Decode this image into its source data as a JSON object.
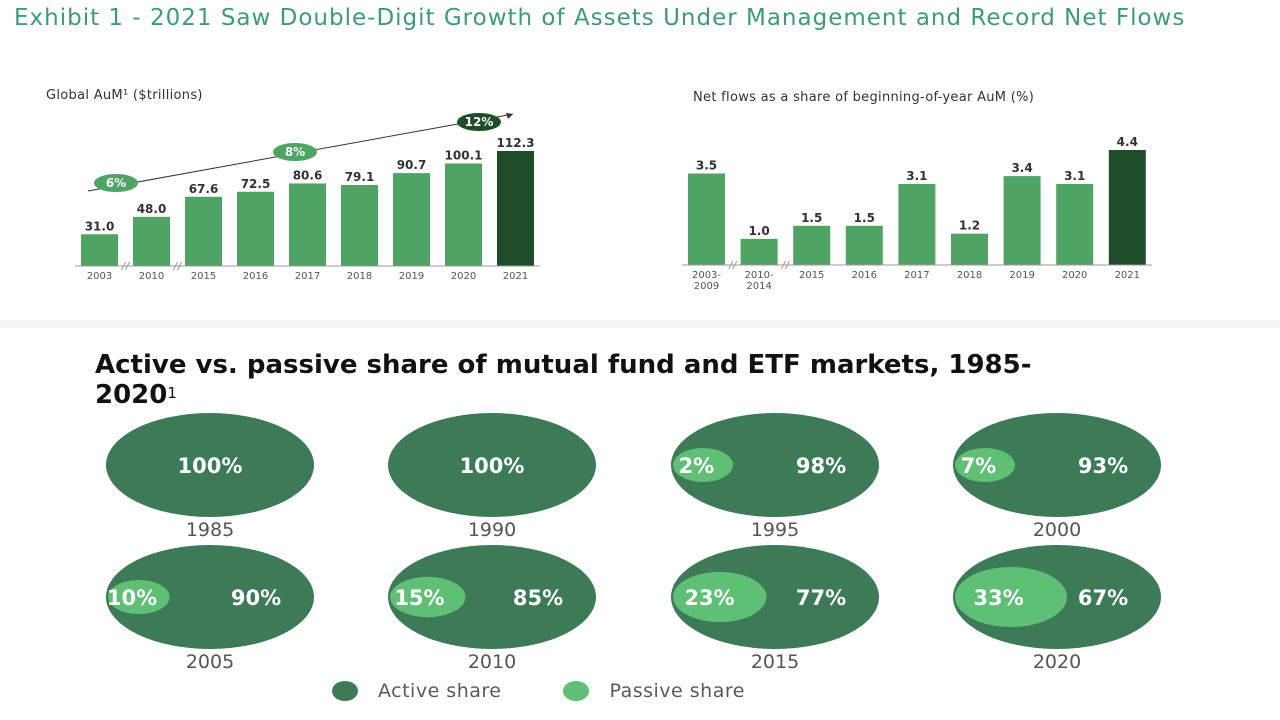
{
  "exhibit_title": "Exhibit 1 - 2021 Saw Double-Digit Growth of Assets Under Management and Record Net Flows",
  "infographic_title": "Active vs. passive share of mutual fund and ETF markets, 1985-2020",
  "infographic_title_sup": "1",
  "colors": {
    "bar": "#4fa363",
    "bar_highlight": "#1f4d29",
    "active": "#3d7a57",
    "passive": "#5fbf75",
    "title_teal": "#3f9a78",
    "cagr_badge": "#4fa363"
  },
  "legend": {
    "active_label": "Active share",
    "passive_label": "Passive share"
  },
  "chart_data": [
    {
      "type": "bar",
      "title": "Global AuM¹ ($trillions)",
      "categories": [
        "2003",
        "2010",
        "2015",
        "2016",
        "2017",
        "2018",
        "2019",
        "2020",
        "2021"
      ],
      "values": [
        31.0,
        48.0,
        67.6,
        72.5,
        80.6,
        79.1,
        90.7,
        100.1,
        112.3
      ],
      "data_labels": [
        "31.0",
        "48.0",
        "67.6",
        "72.5",
        "80.6",
        "79.1",
        "90.7",
        "100.1",
        "112.3"
      ],
      "highlight_category": "2021",
      "axis_break_after": [
        "2003",
        "2010"
      ],
      "annotations": [
        {
          "label": "6%",
          "style": "light"
        },
        {
          "label": "8%",
          "style": "light"
        },
        {
          "label": "12%",
          "style": "dark"
        }
      ],
      "trend_line": true
    },
    {
      "type": "bar",
      "title": "Net flows as a share of beginning-of-year AuM (%)",
      "categories": [
        "2003-\n2009",
        "2010-\n2014",
        "2015",
        "2016",
        "2017",
        "2018",
        "2019",
        "2020",
        "2021"
      ],
      "values": [
        3.5,
        1.0,
        1.5,
        1.5,
        3.1,
        1.2,
        3.4,
        3.1,
        4.4
      ],
      "data_labels": [
        "3.5",
        "1.0",
        "1.5",
        "1.5",
        "3.1",
        "1.2",
        "3.4",
        "3.1",
        "4.4"
      ],
      "highlight_category": "2021",
      "axis_break_after": [
        "2003-\n2009",
        "2010-\n2014"
      ]
    },
    {
      "type": "pie",
      "title": "Active vs. passive share of mutual fund and ETF markets, 1985-2020",
      "series": [
        {
          "name": "Active share",
          "values": [
            100,
            100,
            98,
            93,
            90,
            85,
            77,
            67
          ]
        },
        {
          "name": "Passive share",
          "values": [
            0,
            0,
            2,
            7,
            10,
            15,
            23,
            33
          ]
        }
      ],
      "categories": [
        "1985",
        "1990",
        "1995",
        "2000",
        "2005",
        "2010",
        "2015",
        "2020"
      ],
      "active_labels": [
        "100%",
        "100%",
        "98%",
        "93%",
        "90%",
        "85%",
        "77%",
        "67%"
      ],
      "passive_labels": [
        "",
        "",
        "2%",
        "7%",
        "10%",
        "15%",
        "23%",
        "33%"
      ]
    }
  ]
}
